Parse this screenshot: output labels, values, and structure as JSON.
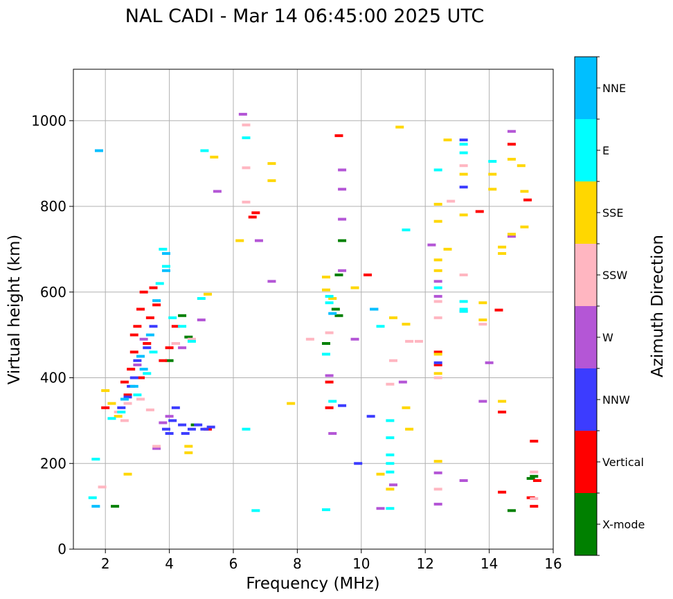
{
  "chart_data": {
    "type": "scatter",
    "title": "NAL CADI - Mar 14 06:45:00 2025 UTC",
    "xlabel": "Frequency (MHz)",
    "ylabel": "Virtual height (km)",
    "xlim": [
      1,
      16
    ],
    "ylim": [
      0,
      1120
    ],
    "xticks": [
      2,
      4,
      6,
      8,
      10,
      12,
      14,
      16
    ],
    "yticks": [
      0,
      200,
      400,
      600,
      800,
      1000
    ],
    "xtick_labels": [
      "2",
      "4",
      "6",
      "8",
      "10",
      "12",
      "14",
      "16"
    ],
    "ytick_labels": [
      "0",
      "200",
      "400",
      "600",
      "800",
      "1000"
    ],
    "grid": true,
    "colorbar": {
      "label": "Azimuth Direction",
      "categories": [
        {
          "name": "X-mode",
          "color": "#008000"
        },
        {
          "name": "Vertical",
          "color": "#ff0000"
        },
        {
          "name": "NNW",
          "color": "#3c3cff"
        },
        {
          "name": "W",
          "color": "#b456d6"
        },
        {
          "name": "SSW",
          "color": "#ffb6c1"
        },
        {
          "name": "SSE",
          "color": "#ffd700"
        },
        {
          "name": "E",
          "color": "#00ffff"
        },
        {
          "name": "NNE",
          "color": "#00bfff"
        }
      ]
    },
    "series": [
      {
        "name": "X-mode",
        "points": [
          [
            2.3,
            100
          ],
          [
            4.0,
            440
          ],
          [
            4.4,
            545
          ],
          [
            4.6,
            495
          ],
          [
            4.8,
            290
          ],
          [
            8.9,
            480
          ],
          [
            9.2,
            560
          ],
          [
            9.3,
            545
          ],
          [
            9.3,
            640
          ],
          [
            9.4,
            720
          ],
          [
            15.4,
            170
          ],
          [
            14.7,
            90
          ],
          [
            15.3,
            165
          ]
        ]
      },
      {
        "name": "Vertical",
        "points": [
          [
            2.0,
            330
          ],
          [
            2.6,
            390
          ],
          [
            2.8,
            420
          ],
          [
            2.9,
            460
          ],
          [
            2.9,
            500
          ],
          [
            3.0,
            520
          ],
          [
            3.1,
            560
          ],
          [
            3.2,
            600
          ],
          [
            3.3,
            480
          ],
          [
            3.4,
            540
          ],
          [
            3.5,
            610
          ],
          [
            3.1,
            400
          ],
          [
            2.7,
            360
          ],
          [
            3.6,
            570
          ],
          [
            3.8,
            440
          ],
          [
            4.0,
            470
          ],
          [
            4.2,
            520
          ],
          [
            5.2,
            280
          ],
          [
            6.7,
            785
          ],
          [
            6.6,
            775
          ],
          [
            9.0,
            390
          ],
          [
            9.0,
            330
          ],
          [
            9.3,
            965
          ],
          [
            10.2,
            640
          ],
          [
            12.4,
            430
          ],
          [
            12.4,
            460
          ],
          [
            13.7,
            788
          ],
          [
            14.3,
            558
          ],
          [
            14.4,
            320
          ],
          [
            14.4,
            133
          ],
          [
            14.7,
            945
          ],
          [
            15.2,
            815
          ],
          [
            15.4,
            252
          ],
          [
            15.3,
            120
          ],
          [
            15.4,
            100
          ],
          [
            15.5,
            160
          ]
        ]
      },
      {
        "name": "NNW",
        "points": [
          [
            2.5,
            330
          ],
          [
            2.7,
            355
          ],
          [
            2.8,
            380
          ],
          [
            2.9,
            400
          ],
          [
            3.0,
            440
          ],
          [
            3.3,
            470
          ],
          [
            3.5,
            520
          ],
          [
            3.9,
            280
          ],
          [
            4.0,
            270
          ],
          [
            4.1,
            300
          ],
          [
            4.2,
            330
          ],
          [
            4.4,
            290
          ],
          [
            4.5,
            270
          ],
          [
            4.7,
            280
          ],
          [
            4.9,
            290
          ],
          [
            5.1,
            280
          ],
          [
            5.3,
            285
          ],
          [
            9.4,
            335
          ],
          [
            9.9,
            200
          ],
          [
            10.3,
            310
          ],
          [
            10.4,
            560
          ],
          [
            12.4,
            435
          ],
          [
            13.2,
            845
          ],
          [
            13.2,
            955
          ]
        ]
      },
      {
        "name": "W",
        "points": [
          [
            3.0,
            430
          ],
          [
            3.2,
            490
          ],
          [
            3.6,
            235
          ],
          [
            3.8,
            295
          ],
          [
            4.0,
            310
          ],
          [
            4.2,
            480
          ],
          [
            4.4,
            470
          ],
          [
            5.0,
            535
          ],
          [
            5.5,
            835
          ],
          [
            6.3,
            1015
          ],
          [
            6.8,
            720
          ],
          [
            7.2,
            625
          ],
          [
            9.0,
            405
          ],
          [
            9.1,
            270
          ],
          [
            9.4,
            885
          ],
          [
            9.4,
            840
          ],
          [
            9.4,
            770
          ],
          [
            9.4,
            650
          ],
          [
            9.8,
            490
          ],
          [
            10.6,
            95
          ],
          [
            11.0,
            150
          ],
          [
            11.3,
            390
          ],
          [
            12.2,
            710
          ],
          [
            12.4,
            590
          ],
          [
            12.4,
            625
          ],
          [
            12.4,
            178
          ],
          [
            12.4,
            105
          ],
          [
            13.2,
            555
          ],
          [
            13.2,
            160
          ],
          [
            13.8,
            345
          ],
          [
            14.0,
            435
          ],
          [
            14.7,
            975
          ],
          [
            14.7,
            730
          ]
        ]
      },
      {
        "name": "SSW",
        "points": [
          [
            1.9,
            145
          ],
          [
            2.4,
            320
          ],
          [
            2.6,
            300
          ],
          [
            2.7,
            340
          ],
          [
            3.1,
            350
          ],
          [
            3.4,
            325
          ],
          [
            3.6,
            240
          ],
          [
            4.2,
            480
          ],
          [
            4.7,
            490
          ],
          [
            6.4,
            990
          ],
          [
            6.4,
            890
          ],
          [
            6.4,
            810
          ],
          [
            8.4,
            490
          ],
          [
            9.0,
            505
          ],
          [
            10.9,
            385
          ],
          [
            11.0,
            440
          ],
          [
            11.5,
            485
          ],
          [
            11.8,
            485
          ],
          [
            12.4,
            578
          ],
          [
            12.4,
            540
          ],
          [
            12.4,
            400
          ],
          [
            12.4,
            140
          ],
          [
            12.8,
            812
          ],
          [
            13.2,
            640
          ],
          [
            13.2,
            895
          ],
          [
            13.8,
            525
          ],
          [
            15.4,
            180
          ],
          [
            15.4,
            118
          ]
        ]
      },
      {
        "name": "SSE",
        "points": [
          [
            2.0,
            370
          ],
          [
            2.2,
            340
          ],
          [
            2.4,
            310
          ],
          [
            2.7,
            175
          ],
          [
            4.6,
            240
          ],
          [
            4.6,
            225
          ],
          [
            5.2,
            595
          ],
          [
            5.4,
            915
          ],
          [
            6.2,
            720
          ],
          [
            7.2,
            900
          ],
          [
            7.2,
            860
          ],
          [
            7.8,
            340
          ],
          [
            8.9,
            605
          ],
          [
            8.9,
            635
          ],
          [
            9.1,
            585
          ],
          [
            9.8,
            610
          ],
          [
            10.6,
            175
          ],
          [
            10.9,
            140
          ],
          [
            11.0,
            540
          ],
          [
            11.2,
            985
          ],
          [
            11.4,
            525
          ],
          [
            11.4,
            330
          ],
          [
            11.5,
            280
          ],
          [
            12.4,
            765
          ],
          [
            12.4,
            805
          ],
          [
            12.4,
            675
          ],
          [
            12.4,
            650
          ],
          [
            12.4,
            455
          ],
          [
            12.4,
            410
          ],
          [
            12.4,
            205
          ],
          [
            12.7,
            955
          ],
          [
            12.7,
            700
          ],
          [
            13.2,
            780
          ],
          [
            13.2,
            875
          ],
          [
            13.8,
            575
          ],
          [
            13.8,
            535
          ],
          [
            14.1,
            840
          ],
          [
            14.1,
            875
          ],
          [
            14.4,
            705
          ],
          [
            14.4,
            690
          ],
          [
            14.4,
            345
          ],
          [
            14.7,
            910
          ],
          [
            14.7,
            735
          ],
          [
            15.0,
            895
          ],
          [
            15.1,
            835
          ],
          [
            15.1,
            752
          ]
        ]
      },
      {
        "name": "E",
        "points": [
          [
            1.6,
            120
          ],
          [
            1.7,
            210
          ],
          [
            2.2,
            305
          ],
          [
            2.5,
            320
          ],
          [
            3.0,
            360
          ],
          [
            3.3,
            410
          ],
          [
            3.5,
            460
          ],
          [
            3.7,
            620
          ],
          [
            3.8,
            700
          ],
          [
            3.9,
            660
          ],
          [
            4.1,
            540
          ],
          [
            4.4,
            520
          ],
          [
            4.7,
            485
          ],
          [
            5.0,
            585
          ],
          [
            5.1,
            930
          ],
          [
            6.4,
            960
          ],
          [
            6.4,
            280
          ],
          [
            6.7,
            90
          ],
          [
            8.9,
            92
          ],
          [
            8.9,
            455
          ],
          [
            9.0,
            575
          ],
          [
            9.0,
            590
          ],
          [
            9.1,
            345
          ],
          [
            10.6,
            520
          ],
          [
            10.9,
            95
          ],
          [
            10.9,
            300
          ],
          [
            10.9,
            260
          ],
          [
            10.9,
            220
          ],
          [
            10.9,
            200
          ],
          [
            10.9,
            180
          ],
          [
            11.4,
            745
          ],
          [
            12.4,
            885
          ],
          [
            12.4,
            610
          ],
          [
            13.2,
            925
          ],
          [
            13.2,
            945
          ],
          [
            13.2,
            578
          ],
          [
            13.2,
            555
          ],
          [
            13.2,
            560
          ],
          [
            14.1,
            905
          ]
        ]
      },
      {
        "name": "NNE",
        "points": [
          [
            1.7,
            100
          ],
          [
            1.8,
            930
          ],
          [
            2.6,
            350
          ],
          [
            2.9,
            380
          ],
          [
            3.1,
            450
          ],
          [
            3.2,
            420
          ],
          [
            3.4,
            500
          ],
          [
            3.6,
            580
          ],
          [
            3.9,
            650
          ],
          [
            3.9,
            690
          ],
          [
            9.1,
            550
          ],
          [
            10.4,
            560
          ]
        ]
      }
    ]
  }
}
